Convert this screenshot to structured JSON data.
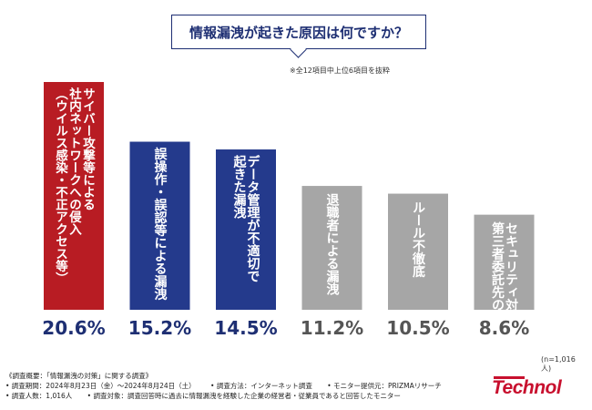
{
  "title": "情報漏洩が起きた原因は何ですか？",
  "note": "※全12項目中上位6項目を抜粋",
  "sample_size": "(n=1,016人)",
  "footer": {
    "heading": "《調査概要：「情報漏洩の対策」に関する調査》",
    "period": "• 調査期間：2024年8月23日（金）〜2024年8月24日（土）",
    "method": "• 調査方法：インターネット調査",
    "provider": "• モニター提供元：PRIZMAリサーチ",
    "people": "• 調査人数：1,016人",
    "target": "• 調査対象：調査回答時に過去に情報漏洩を経験した企業の経営者・従業員であると回答したモニター"
  },
  "logo": "Technol",
  "colors": {
    "first": "#b81c23",
    "second": "#243a8c",
    "third": "#243a8c",
    "rest": "#a6a6a6",
    "label_dark": "#1e2f73",
    "label_light": "#555555"
  },
  "chart_data": {
    "type": "bar",
    "categories": [
      "サイバー攻撃等による社内ネットワークへの侵入（ウイルス感染・不正アクセス等）",
      "誤操作・誤認等による漏洩",
      "データ管理が不適切で起きた漏洩",
      "退職者による漏洩",
      "ルール不徹底",
      "第三者委託先のセキュリティ対策の不備"
    ],
    "label_columns": [
      [
        "サイバー攻撃等による",
        "社内ネットワークへの侵入",
        "（ウイルス感染・不正アクセス等）"
      ],
      [
        "誤操作・誤認等による漏洩"
      ],
      [
        "データ管理が不適切で",
        "起きた漏洩"
      ],
      [
        "退職者による漏洩"
      ],
      [
        "ルール不徹底"
      ],
      [
        "セキュリティ対策の不備",
        "第三者委託先の"
      ]
    ],
    "values": [
      20.6,
      15.2,
      14.5,
      11.2,
      10.5,
      8.6
    ],
    "value_labels": [
      "20.6%",
      "15.2%",
      "14.5%",
      "11.2%",
      "10.5%",
      "8.6%"
    ],
    "unit": "%",
    "ylim": [
      0,
      20.6
    ]
  }
}
